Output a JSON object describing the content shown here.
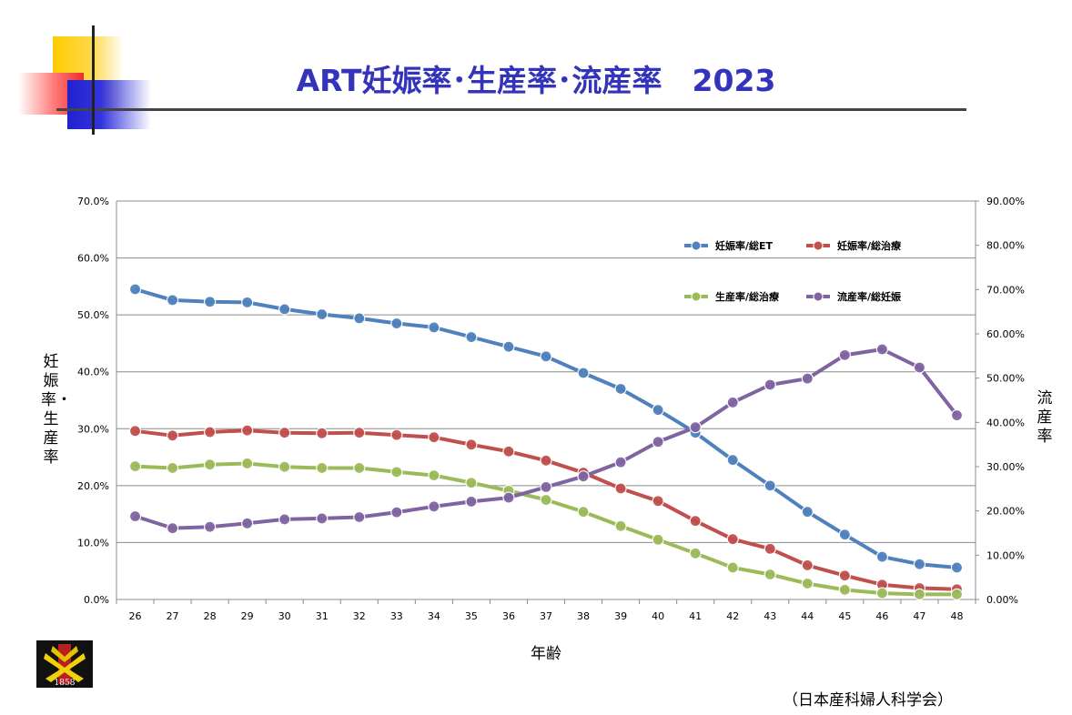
{
  "title": "ART妊娠率･生産率･流産率　2023",
  "source": "（日本産科婦人科学会）",
  "logo": {
    "icon": "society-emblem-icon",
    "year_text": "1858"
  },
  "colors": {
    "blue": "#4f81bd",
    "red": "#c0504d",
    "green": "#9bbb59",
    "purple": "#8064a2"
  },
  "chart_data": {
    "type": "line",
    "xlabel": "年齢",
    "ylabel_left": "妊娠率・生産率",
    "ylabel_right": "流産率",
    "categories": [
      "26",
      "27",
      "28",
      "29",
      "30",
      "31",
      "32",
      "33",
      "34",
      "35",
      "36",
      "37",
      "38",
      "39",
      "40",
      "41",
      "42",
      "43",
      "44",
      "45",
      "46",
      "47",
      "48"
    ],
    "y_left": {
      "range": [
        0,
        70
      ],
      "ticks": [
        "0.0%",
        "10.0%",
        "20.0%",
        "30.0%",
        "40.0%",
        "50.0%",
        "60.0%",
        "70.0%"
      ]
    },
    "y_right": {
      "range": [
        0,
        90
      ],
      "ticks": [
        "0.00%",
        "10.00%",
        "20.00%",
        "30.00%",
        "40.00%",
        "50.00%",
        "60.00%",
        "70.00%",
        "80.00%",
        "90.00%"
      ]
    },
    "grid": true,
    "legend_position": "top-right",
    "series": [
      {
        "name": "妊娠率/総ET",
        "axis": "left",
        "color": "#4f81bd",
        "values": [
          54.5,
          52.6,
          52.3,
          52.2,
          51.0,
          50.1,
          49.4,
          48.5,
          47.8,
          46.1,
          44.4,
          42.7,
          39.8,
          37.0,
          33.3,
          29.3,
          24.5,
          20.0,
          15.4,
          11.4,
          7.5,
          6.2,
          5.6
        ]
      },
      {
        "name": "妊娠率/総治療",
        "axis": "left",
        "color": "#c0504d",
        "values": [
          29.6,
          28.8,
          29.4,
          29.7,
          29.3,
          29.2,
          29.3,
          28.9,
          28.5,
          27.2,
          26.0,
          24.4,
          22.3,
          19.5,
          17.3,
          13.8,
          10.6,
          8.9,
          6.0,
          4.2,
          2.6,
          2.0,
          1.8
        ]
      },
      {
        "name": "生産率/総治療",
        "axis": "left",
        "color": "#9bbb59",
        "values": [
          23.4,
          23.1,
          23.7,
          23.9,
          23.3,
          23.1,
          23.1,
          22.4,
          21.8,
          20.5,
          19.1,
          17.5,
          15.4,
          12.9,
          10.5,
          8.1,
          5.6,
          4.4,
          2.8,
          1.7,
          1.1,
          0.9,
          0.9
        ]
      },
      {
        "name": "流産率/総妊娠",
        "axis": "right",
        "color": "#8064a2",
        "values": [
          18.8,
          16.1,
          16.4,
          17.2,
          18.1,
          18.3,
          18.6,
          19.7,
          21.0,
          22.1,
          23.0,
          25.4,
          27.8,
          31.0,
          35.6,
          38.9,
          44.5,
          48.5,
          49.9,
          55.2,
          56.5,
          52.4,
          41.6
        ]
      }
    ]
  }
}
